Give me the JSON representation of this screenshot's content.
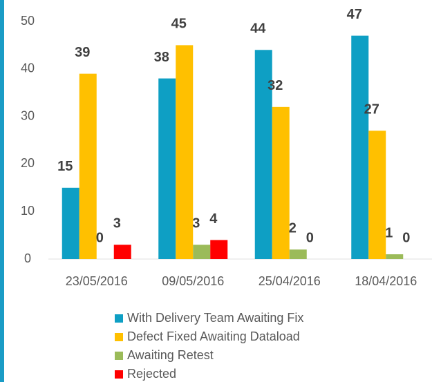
{
  "chart_data": {
    "type": "bar",
    "categories": [
      "23/05/2016",
      "09/05/2016",
      "25/04/2016",
      "18/04/2016"
    ],
    "series": [
      {
        "name": "With Delivery Team Awaiting Fix",
        "color": "#0e9fc4",
        "values": [
          15,
          38,
          44,
          47
        ]
      },
      {
        "name": "Defect Fixed Awaiting Dataload",
        "color": "#ffc000",
        "values": [
          39,
          45,
          32,
          27
        ]
      },
      {
        "name": "Awaiting Retest",
        "color": "#9bbb59",
        "values": [
          0,
          3,
          2,
          1
        ]
      },
      {
        "name": "Rejected",
        "color": "#ff0000",
        "values": [
          3,
          4,
          0,
          0
        ]
      }
    ],
    "ylim": [
      0,
      50
    ],
    "yticks": [
      0,
      10,
      20,
      30,
      40,
      50
    ],
    "grid": false,
    "legend": "bottom"
  }
}
